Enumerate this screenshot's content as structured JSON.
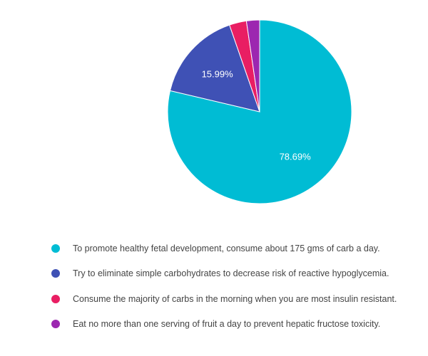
{
  "chart_data": {
    "type": "pie",
    "title": "",
    "slices": [
      {
        "label": "To promote healthy fetal development, consume about 175 gms of carb a day.",
        "value": 78.69,
        "display": "78.69%",
        "color": "#00bcd4"
      },
      {
        "label": "Try to eliminate simple carbohydrates to decrease risk of reactive hypoglycemia.",
        "value": 15.99,
        "display": "15.99%",
        "color": "#3f51b5"
      },
      {
        "label": "Consume the majority of carbs in the morning when you are most insulin resistant.",
        "value": 3.01,
        "display": "",
        "color": "#e91e63"
      },
      {
        "label": "Eat no more than one serving of fruit a day to prevent hepatic fructose toxicity.",
        "value": 2.31,
        "display": "",
        "color": "#9c27b0"
      }
    ],
    "legend_position": "bottom"
  }
}
